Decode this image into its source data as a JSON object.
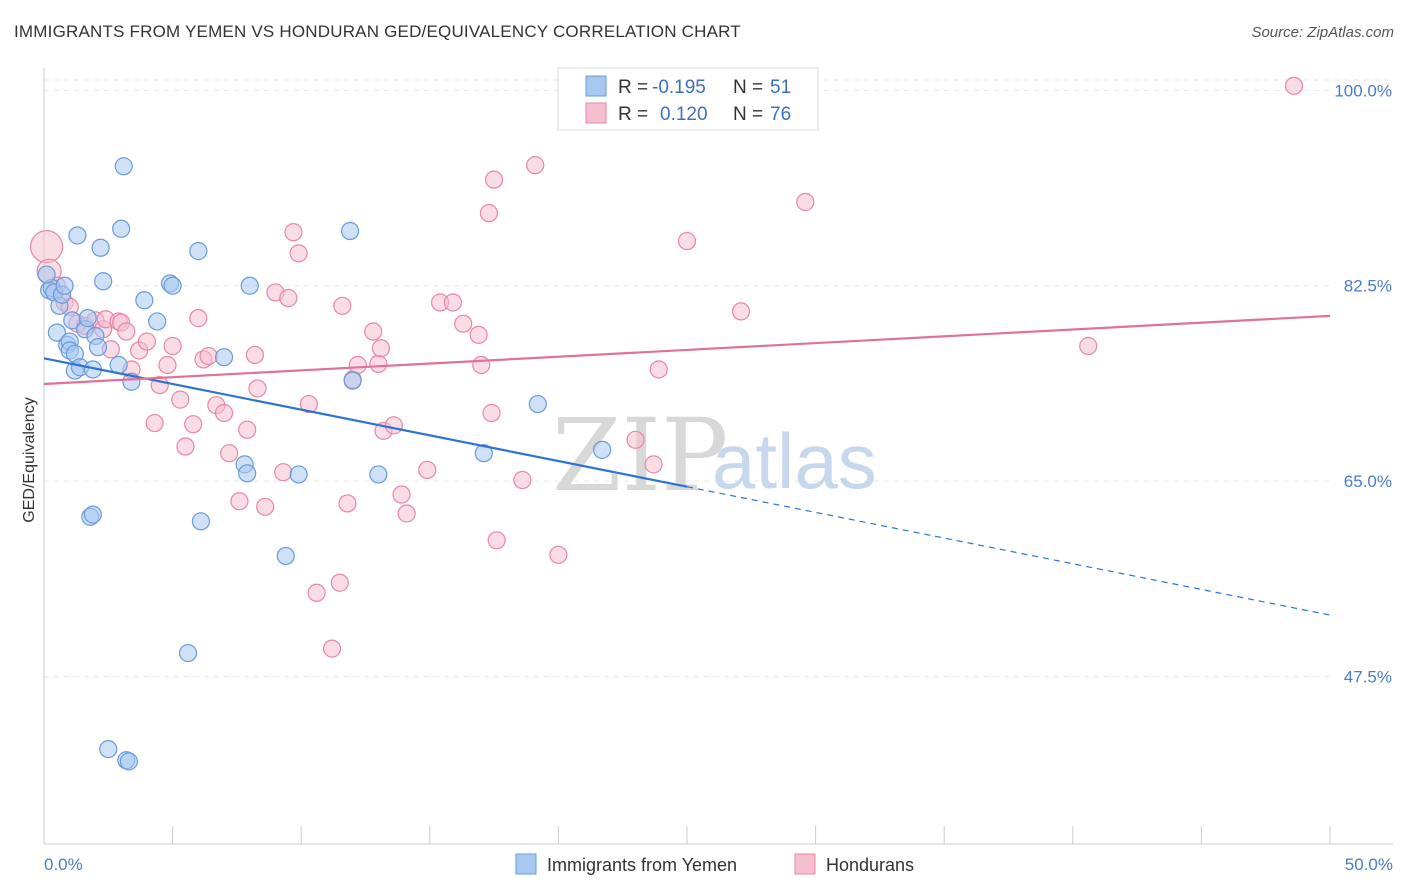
{
  "title": "IMMIGRANTS FROM YEMEN VS HONDURAN GED/EQUIVALENCY CORRELATION CHART",
  "source": "Source: ZipAtlas.com",
  "watermark": {
    "zip": "ZIP",
    "atlas": "atlas"
  },
  "legend": {
    "r_label": "R =",
    "n_label": "N =",
    "rows": [
      {
        "name": "Immigrants from Yemen",
        "r": "-0.195",
        "n": "51",
        "color": "#a8c8f0",
        "stroke": "#6a9ad8"
      },
      {
        "name": "Hondurans",
        "r": "0.120",
        "n": "76",
        "color": "#f6bfd0",
        "stroke": "#e887a6"
      }
    ]
  },
  "chart_data": {
    "type": "scatter",
    "ylabel": "GED/Equivalency",
    "x_tick_labels": [
      "0.0%",
      "50.0%"
    ],
    "y_tick_labels": [
      "100.0%",
      "82.5%",
      "65.0%",
      "47.5%"
    ],
    "y_tick_values": [
      100.0,
      82.5,
      65.0,
      47.5
    ],
    "xlim": [
      0,
      50
    ],
    "ylim": [
      32.5,
      102
    ],
    "grid": true,
    "legend_position": "top-center",
    "series": [
      {
        "name": "Immigrants from Yemen",
        "color": "#a8c8f0",
        "stroke": "#6a9ad8",
        "line_color": "#2e72d2",
        "trend": {
          "x0": 0,
          "y0": 76.0,
          "x1": 25,
          "y1": 64.5,
          "x_dash_end": 50,
          "y_dash_end": 53.0
        },
        "points": [
          [
            0.2,
            82.1
          ],
          [
            0.3,
            82.3
          ],
          [
            0.4,
            81.9
          ],
          [
            0.5,
            78.3
          ],
          [
            0.6,
            80.7
          ],
          [
            0.7,
            81.7
          ],
          [
            0.8,
            82.5
          ],
          [
            0.9,
            77.2
          ],
          [
            1.0,
            77.5
          ],
          [
            1.0,
            76.7
          ],
          [
            1.1,
            79.4
          ],
          [
            1.2,
            76.4
          ],
          [
            1.2,
            74.9
          ],
          [
            1.3,
            87.0
          ],
          [
            1.4,
            75.2
          ],
          [
            1.6,
            78.6
          ],
          [
            1.7,
            79.6
          ],
          [
            1.8,
            61.8
          ],
          [
            1.9,
            62.0
          ],
          [
            1.9,
            75.0
          ],
          [
            2.0,
            78.0
          ],
          [
            2.1,
            77.0
          ],
          [
            2.2,
            85.9
          ],
          [
            2.3,
            82.9
          ],
          [
            2.5,
            41.0
          ],
          [
            2.9,
            75.4
          ],
          [
            3.0,
            87.6
          ],
          [
            3.1,
            93.2
          ],
          [
            3.2,
            40.0
          ],
          [
            3.3,
            39.9
          ],
          [
            3.4,
            73.9
          ],
          [
            3.9,
            81.2
          ],
          [
            4.4,
            79.3
          ],
          [
            4.9,
            82.7
          ],
          [
            5.0,
            82.5
          ],
          [
            5.6,
            49.6
          ],
          [
            6.0,
            85.6
          ],
          [
            6.1,
            61.4
          ],
          [
            7.0,
            76.1
          ],
          [
            7.8,
            66.5
          ],
          [
            7.9,
            65.7
          ],
          [
            8.0,
            82.5
          ],
          [
            9.4,
            58.3
          ],
          [
            9.9,
            65.6
          ],
          [
            11.9,
            87.4
          ],
          [
            12.0,
            74.0
          ],
          [
            13.0,
            65.6
          ],
          [
            17.1,
            67.5
          ],
          [
            19.2,
            71.9
          ],
          [
            21.7,
            67.8
          ],
          [
            0.1,
            83.5
          ]
        ]
      },
      {
        "name": "Hondurans",
        "color": "#f6bfd0",
        "stroke": "#e887a6",
        "line_color": "#e0719a",
        "trend": {
          "x0": 0,
          "y0": 73.7,
          "x1": 50,
          "y1": 79.8
        },
        "points": [
          [
            0.1,
            86.0
          ],
          [
            0.2,
            83.8
          ],
          [
            0.5,
            82.5
          ],
          [
            0.8,
            81.0
          ],
          [
            1.0,
            80.6
          ],
          [
            1.3,
            79.1
          ],
          [
            1.6,
            78.9
          ],
          [
            2.0,
            79.4
          ],
          [
            2.3,
            78.6
          ],
          [
            2.4,
            79.5
          ],
          [
            2.6,
            76.8
          ],
          [
            2.9,
            79.3
          ],
          [
            3.0,
            79.2
          ],
          [
            3.2,
            78.4
          ],
          [
            3.4,
            75.0
          ],
          [
            3.7,
            76.7
          ],
          [
            4.0,
            77.5
          ],
          [
            4.3,
            70.2
          ],
          [
            4.5,
            73.6
          ],
          [
            4.8,
            75.4
          ],
          [
            5.0,
            77.1
          ],
          [
            5.3,
            72.3
          ],
          [
            5.5,
            68.1
          ],
          [
            5.8,
            70.1
          ],
          [
            6.0,
            79.6
          ],
          [
            6.2,
            75.9
          ],
          [
            6.4,
            76.2
          ],
          [
            6.7,
            71.8
          ],
          [
            7.0,
            71.1
          ],
          [
            7.2,
            67.5
          ],
          [
            7.6,
            63.2
          ],
          [
            7.9,
            69.6
          ],
          [
            8.2,
            76.3
          ],
          [
            8.3,
            73.3
          ],
          [
            8.6,
            62.7
          ],
          [
            9.0,
            81.9
          ],
          [
            9.3,
            65.8
          ],
          [
            9.5,
            81.4
          ],
          [
            9.7,
            87.3
          ],
          [
            9.9,
            85.4
          ],
          [
            10.3,
            71.9
          ],
          [
            10.6,
            55.0
          ],
          [
            11.2,
            50.0
          ],
          [
            11.5,
            55.9
          ],
          [
            11.6,
            80.7
          ],
          [
            11.8,
            63.0
          ],
          [
            12.0,
            74.1
          ],
          [
            12.2,
            75.4
          ],
          [
            12.8,
            78.4
          ],
          [
            13.0,
            75.5
          ],
          [
            13.1,
            76.9
          ],
          [
            13.2,
            69.5
          ],
          [
            13.6,
            70.0
          ],
          [
            13.9,
            63.8
          ],
          [
            14.1,
            62.1
          ],
          [
            14.9,
            66.0
          ],
          [
            15.4,
            81.0
          ],
          [
            15.9,
            81.0
          ],
          [
            16.3,
            79.1
          ],
          [
            16.9,
            78.1
          ],
          [
            17.0,
            75.4
          ],
          [
            17.3,
            89.0
          ],
          [
            17.4,
            71.1
          ],
          [
            17.5,
            92.0
          ],
          [
            17.6,
            59.7
          ],
          [
            18.6,
            65.1
          ],
          [
            19.1,
            93.3
          ],
          [
            20.0,
            58.4
          ],
          [
            23.0,
            68.7
          ],
          [
            23.7,
            66.5
          ],
          [
            23.9,
            75.0
          ],
          [
            25.0,
            86.5
          ],
          [
            27.1,
            80.2
          ],
          [
            29.6,
            90.0
          ],
          [
            40.6,
            77.1
          ],
          [
            48.6,
            100.4
          ]
        ]
      }
    ]
  },
  "bottom_legend": [
    "Immigrants from Yemen",
    "Hondurans"
  ]
}
